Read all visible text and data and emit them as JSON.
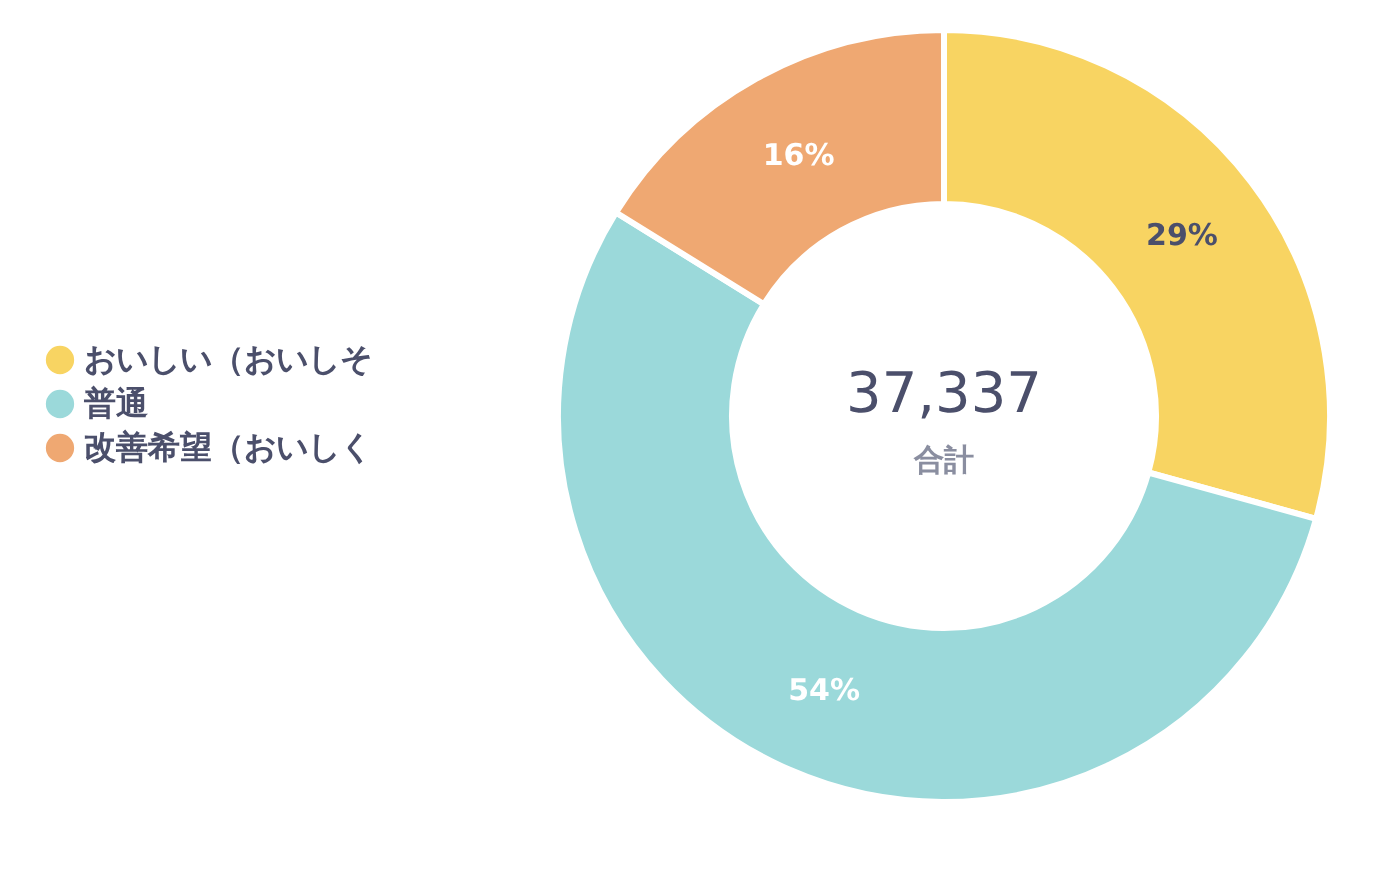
{
  "chart_data": {
    "type": "donut",
    "categories": [
      "おいしい（おいしそ",
      "普通",
      "改善希望（おいしく"
    ],
    "values": [
      29,
      54,
      16
    ],
    "colors": [
      "#f8d462",
      "#9bd9da",
      "#efa872"
    ],
    "value_labels": [
      "29%",
      "54%",
      "16%"
    ],
    "annotations": [
      "37,337",
      "合計"
    ],
    "legend": "left"
  }
}
